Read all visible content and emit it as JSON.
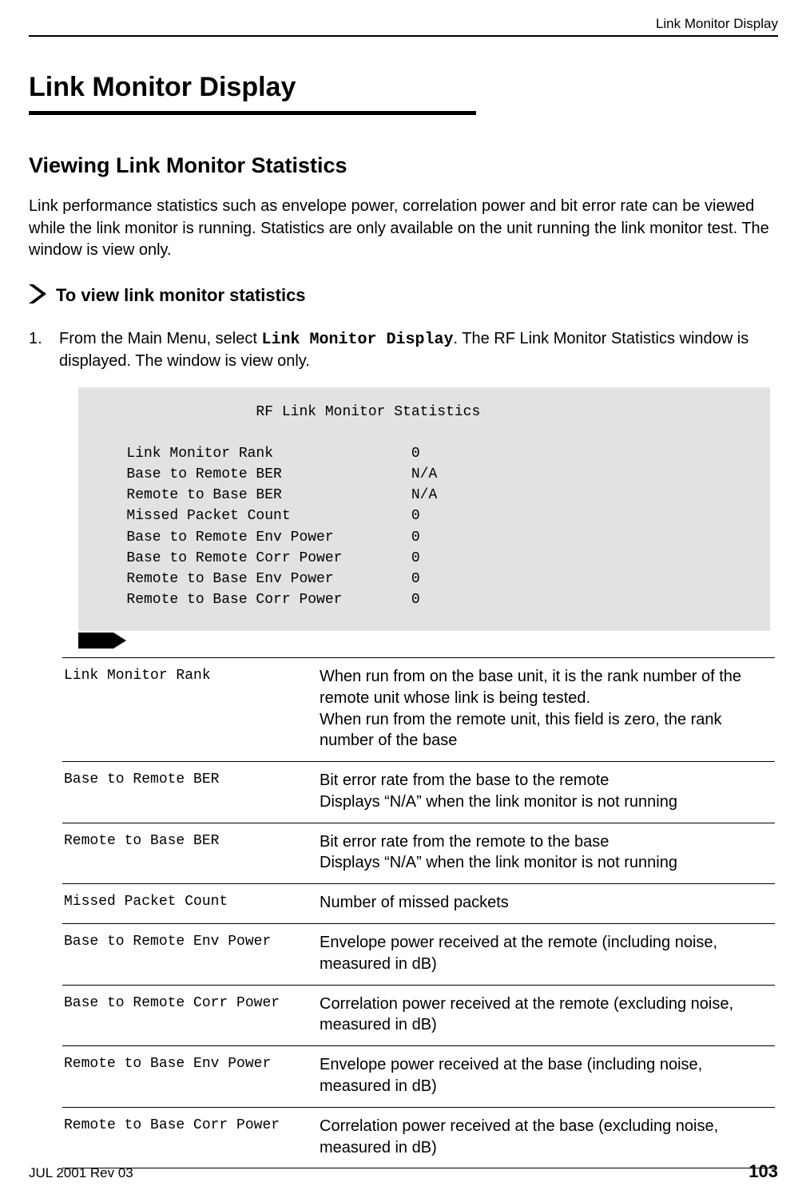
{
  "header": {
    "running_head": "Link Monitor Display"
  },
  "section": {
    "title": "Link Monitor Display",
    "subtitle": "Viewing Link Monitor Statistics",
    "intro": "Link performance statistics such as envelope power, correlation power and bit error rate can be viewed while the link monitor is running. Statistics are only available on the unit running the link monitor test. The window is view only.",
    "procedure_heading": "To view link monitor statistics",
    "step": {
      "num": "1.",
      "pre": "From the Main Menu, select ",
      "cmd": "Link Monitor Display",
      "post": ". The RF Link Monitor Statistics window is displayed. The window is view only."
    }
  },
  "terminal": {
    "title": "RF Link Monitor Statistics",
    "rows": [
      {
        "label": "Link Monitor Rank",
        "value": "0"
      },
      {
        "label": "Base to Remote BER",
        "value": "N/A"
      },
      {
        "label": "Remote to Base BER",
        "value": "N/A"
      },
      {
        "label": "Missed Packet Count",
        "value": "0"
      },
      {
        "label": "Base to Remote Env Power",
        "value": "0"
      },
      {
        "label": "Base to Remote Corr Power",
        "value": "0"
      },
      {
        "label": "Remote to Base Env Power",
        "value": "0"
      },
      {
        "label": "Remote to Base Corr Power",
        "value": "0"
      }
    ]
  },
  "definitions": [
    {
      "term": "Link Monitor Rank",
      "desc": "When run from on the base unit, it is the rank number of the remote unit whose link is being tested.\nWhen run from the remote unit, this field is zero, the rank number of the base"
    },
    {
      "term": "Base to Remote BER",
      "desc": "Bit error rate from the base to the remote\nDisplays “N/A” when the link monitor is not running"
    },
    {
      "term": "Remote to Base BER",
      "desc": "Bit error rate from the remote to the base\nDisplays “N/A” when the link monitor is not running"
    },
    {
      "term": "Missed Packet Count",
      "desc": "Number of missed packets"
    },
    {
      "term": "Base to Remote Env Power",
      "desc": "Envelope power received at the remote (including noise, measured in dB)"
    },
    {
      "term": "Base to Remote Corr Power",
      "desc": "Correlation power received at the remote (excluding noise, measured in dB)"
    },
    {
      "term": "Remote to Base Env Power",
      "desc": "Envelope power received at the base (including noise, measured in dB)"
    },
    {
      "term": "Remote to Base Corr Power",
      "desc": "Correlation power received at the base (excluding noise, measured in dB)"
    }
  ],
  "footer": {
    "date_rev": "JUL 2001 Rev 03",
    "page": "103"
  },
  "colors": {
    "text": "#000000",
    "terminal_bg": "#e2e2e2",
    "rule": "#000000"
  }
}
